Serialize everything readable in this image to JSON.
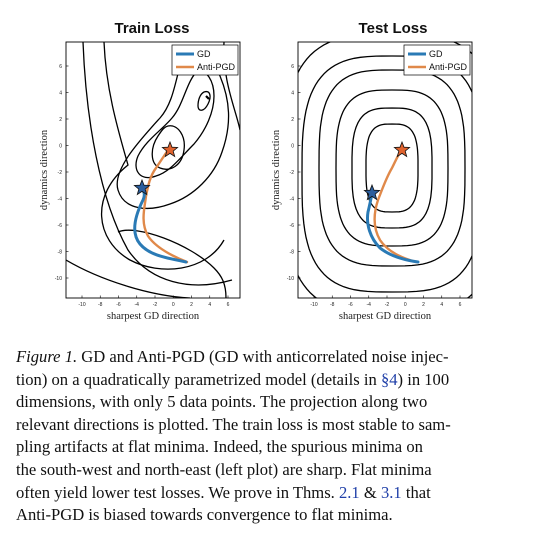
{
  "figure": {
    "panels": [
      {
        "title": "Train Loss",
        "xlabel": "sharpest GD direction",
        "ylabel": "dynamics direction",
        "xticks": [
          "-10",
          "-8",
          "-6",
          "-4",
          "-2",
          "0",
          "2",
          "4",
          "6"
        ],
        "yticks": [
          "6",
          "4",
          "2",
          "0",
          "-2",
          "-4",
          "-6",
          "-8",
          "-10"
        ],
        "legend": [
          "GD",
          "Anti-PGD"
        ]
      },
      {
        "title": "Test Loss",
        "xlabel": "sharpest GD direction",
        "ylabel": "dynamics direction",
        "xticks": [
          "-10",
          "-8",
          "-6",
          "-4",
          "-2",
          "0",
          "2",
          "4",
          "6"
        ],
        "yticks": [
          "6",
          "4",
          "2",
          "0",
          "-2",
          "-4",
          "-6",
          "-8",
          "-10"
        ],
        "legend": [
          "GD",
          "Anti-PGD"
        ]
      }
    ],
    "colors": {
      "gd": "#2a7ab5",
      "anti_pgd": "#e0894a",
      "star_gd": "#2b5e9e",
      "star_anti": "#e0632e",
      "contour": "#000000"
    }
  },
  "caption": {
    "lines": [
      [
        "Figure 1.",
        " GD and Anti-PGD (GD with anticorrelated noise injec-"
      ],
      [
        "tion) on a quadratically parametrized model (details in ",
        "§4",
        ") in 100"
      ],
      [
        "dimensions, with only 5 data points.  The projection along two"
      ],
      [
        "relevant directions is plotted. The train loss is most stable to sam-"
      ],
      [
        "pling artifacts at flat minima.  Indeed, the spurious minima on"
      ],
      [
        "the south-west and north-east (left plot) are sharp.  Flat minima"
      ],
      [
        "often yield lower test losses. We prove in Thms. ",
        "2.1",
        " & ",
        "3.1",
        " that"
      ],
      [
        "Anti-PGD is biased towards convergence to flat minima."
      ]
    ]
  }
}
